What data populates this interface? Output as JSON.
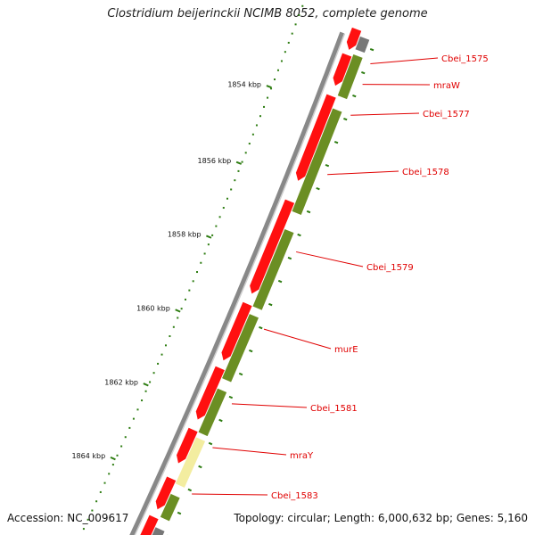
{
  "title": "Clostridium beijerinckii NCIMB 8052, complete genome",
  "footer": {
    "accession": "Accession: NC_009617",
    "summary": "Topology: circular; Length: 6,000,632 bp; Genes: 5,160"
  },
  "colors": {
    "red_gene": "#ff1010",
    "green_gene": "#6b8e23",
    "yellow_gene": "#f3eda0",
    "gray_gene": "#777777",
    "backbone": "#888888",
    "tick_green": "#2e7d12",
    "label_red": "#e00000"
  },
  "kbp_ticks": [
    {
      "label": "1854 kbp"
    },
    {
      "label": "1856 kbp"
    },
    {
      "label": "1858 kbp"
    },
    {
      "label": "1860 kbp"
    },
    {
      "label": "1862 kbp"
    },
    {
      "label": "1864 kbp"
    }
  ],
  "gene_labels": [
    {
      "text": "Cbei_1575"
    },
    {
      "text": "mraW"
    },
    {
      "text": "Cbei_1577"
    },
    {
      "text": "Cbei_1578"
    },
    {
      "text": "Cbei_1579"
    },
    {
      "text": "murE"
    },
    {
      "text": "Cbei_1581"
    },
    {
      "text": "mraY"
    },
    {
      "text": "Cbei_1583"
    }
  ]
}
